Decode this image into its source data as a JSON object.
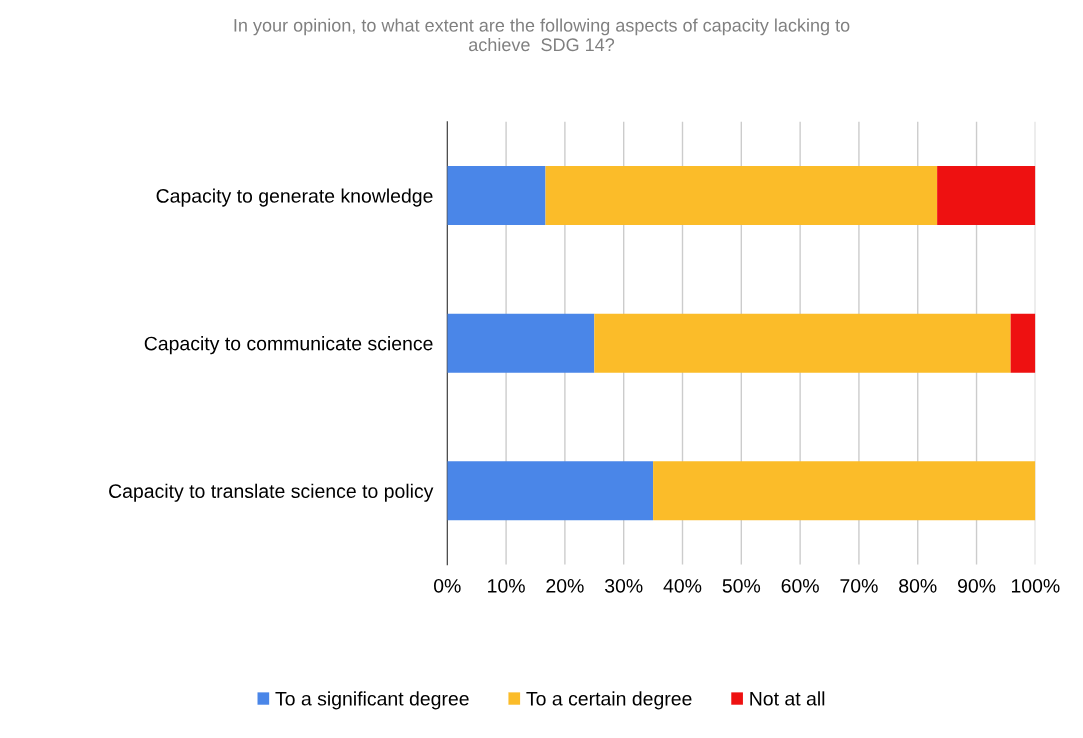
{
  "chart_data": {
    "type": "bar",
    "orientation": "horizontal",
    "stacked": true,
    "title": "In your opinion, to what extent are the following aspects of capacity lacking to\nachieve  SDG 14?",
    "categories": [
      "Capacity to generate knowledge",
      "Capacity to communicate science",
      "Capacity to translate science to policy"
    ],
    "series": [
      {
        "name": "To a significant degree",
        "color": "#4a86e8",
        "values": [
          16.7,
          25,
          35
        ]
      },
      {
        "name": "To a certain degree",
        "color": "#fbbc29",
        "values": [
          66.6,
          70.8,
          65
        ]
      },
      {
        "name": "Not at all",
        "color": "#ee1111",
        "values": [
          16.7,
          4.2,
          0
        ]
      }
    ],
    "xlim": [
      0,
      100
    ],
    "xticks": [
      {
        "value": 0,
        "label": "0%"
      },
      {
        "value": 10,
        "label": "10%"
      },
      {
        "value": 20,
        "label": "20%"
      },
      {
        "value": 30,
        "label": "30%"
      },
      {
        "value": 40,
        "label": "40%"
      },
      {
        "value": 50,
        "label": "50%"
      },
      {
        "value": 60,
        "label": "60%"
      },
      {
        "value": 70,
        "label": "70%"
      },
      {
        "value": 80,
        "label": "80%"
      },
      {
        "value": 90,
        "label": "90%"
      },
      {
        "value": 100,
        "label": "100%"
      }
    ],
    "grid": "x",
    "legend": "bottom"
  }
}
